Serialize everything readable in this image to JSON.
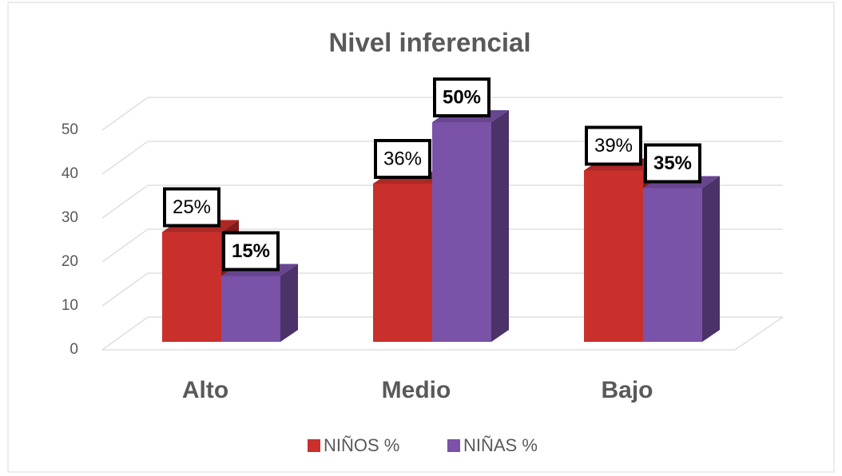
{
  "chart_data": {
    "type": "bar3d",
    "title": "Nivel inferencial",
    "categories": [
      "Alto",
      "Medio",
      "Bajo"
    ],
    "series": [
      {
        "name": "NIÑOS %",
        "color": "#c9302c",
        "values": [
          25,
          36,
          39
        ],
        "value_labels": [
          "25%",
          "36%",
          "39%"
        ]
      },
      {
        "name": "NIÑAS %",
        "color": "#7a52a8",
        "values": [
          15,
          50,
          35
        ],
        "value_labels": [
          "15%",
          "50%",
          "35%"
        ]
      }
    ],
    "ylim": [
      0,
      50
    ],
    "yticks": [
      0,
      10,
      20,
      30,
      40,
      50
    ],
    "grid": true,
    "legend": "bottom"
  }
}
